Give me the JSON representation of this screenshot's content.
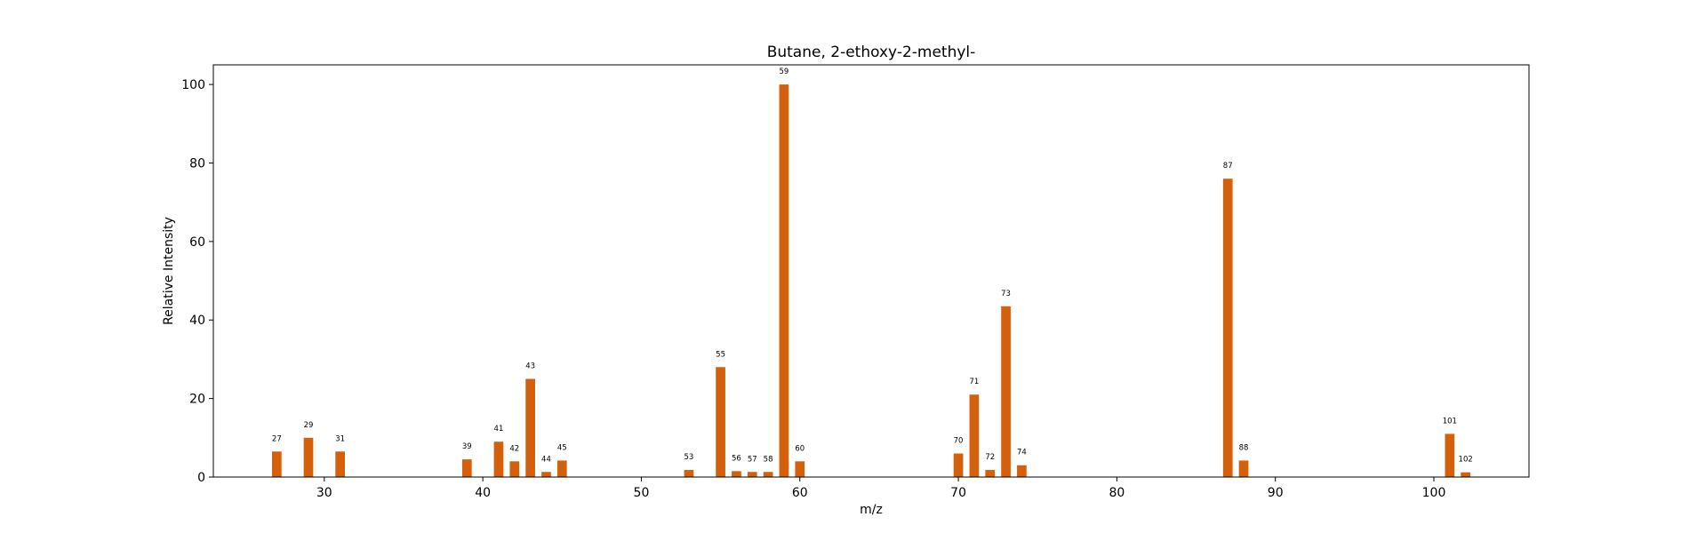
{
  "chart_data": {
    "type": "bar",
    "title": "Butane, 2-ethoxy-2-methyl-",
    "xlabel": "m/z",
    "ylabel": "Relative Intensity",
    "xlim": [
      23,
      106
    ],
    "ylim": [
      0,
      105
    ],
    "x_ticks": [
      30,
      40,
      50,
      60,
      70,
      80,
      90,
      100
    ],
    "y_ticks": [
      0,
      20,
      40,
      60,
      80,
      100
    ],
    "bar_color": "#d4600c",
    "grid": false,
    "x": [
      27,
      29,
      31,
      39,
      41,
      42,
      43,
      44,
      45,
      53,
      55,
      56,
      57,
      58,
      59,
      60,
      70,
      71,
      72,
      73,
      74,
      87,
      88,
      101,
      102
    ],
    "values": [
      6.5,
      10,
      6.5,
      4.5,
      9,
      4,
      25,
      1.3,
      4.2,
      1.8,
      28,
      1.5,
      1.3,
      1.3,
      100,
      4,
      6,
      21,
      1.8,
      43.5,
      3,
      76,
      4.2,
      11,
      1.2
    ],
    "labels": [
      "27",
      "29",
      "31",
      "39",
      "41",
      "42",
      "43",
      "44",
      "45",
      "53",
      "55",
      "56",
      "57",
      "58",
      "59",
      "60",
      "70",
      "71",
      "72",
      "73",
      "74",
      "87",
      "88",
      "101",
      "102"
    ]
  }
}
